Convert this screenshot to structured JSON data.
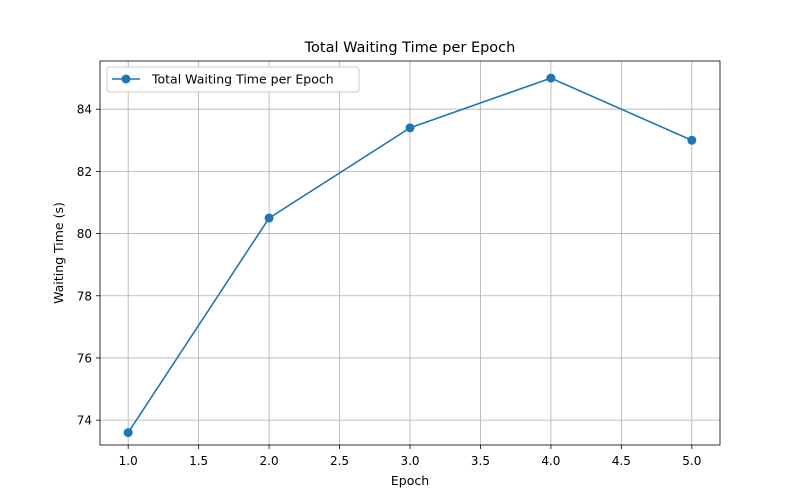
{
  "chart_data": {
    "type": "line",
    "title": "Total Waiting Time per Epoch",
    "xlabel": "Epoch",
    "ylabel": "Waiting Time (s)",
    "x": [
      1,
      2,
      3,
      4,
      5
    ],
    "series": [
      {
        "name": "Total Waiting Time per Epoch",
        "values": [
          73.6,
          80.5,
          83.4,
          85.0,
          83.0
        ]
      }
    ],
    "xlim": [
      0.8,
      5.2
    ],
    "ylim": [
      73.2,
      85.55
    ],
    "xticks": [
      1.0,
      1.5,
      2.0,
      2.5,
      3.0,
      3.5,
      4.0,
      4.5,
      5.0
    ],
    "xtick_labels": [
      "1.0",
      "1.5",
      "2.0",
      "2.5",
      "3.0",
      "3.5",
      "4.0",
      "4.5",
      "5.0"
    ],
    "yticks": [
      74,
      76,
      78,
      80,
      82,
      84
    ],
    "ytick_labels": [
      "74",
      "76",
      "78",
      "80",
      "82",
      "84"
    ],
    "grid": true,
    "legend": "upper-left",
    "colors": {
      "line": "#1f77b4",
      "grid": "#b0b0b0",
      "axis": "#000000"
    },
    "marker": "circle"
  }
}
